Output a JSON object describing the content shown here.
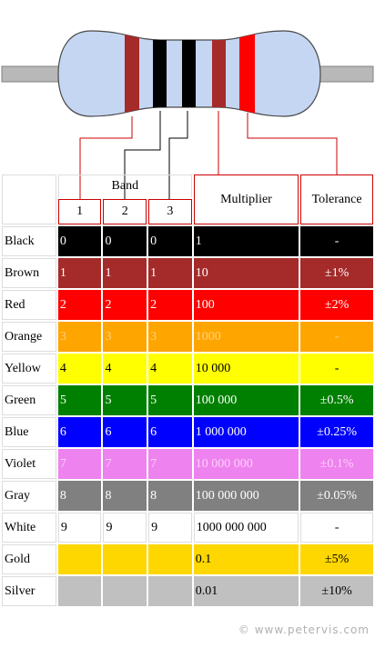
{
  "header": {
    "band_label": "Band",
    "band_numbers": [
      "1",
      "2",
      "3"
    ],
    "multiplier_label": "Multiplier",
    "tolerance_label": "Tolerance"
  },
  "rows": [
    {
      "name": "Black",
      "digit": "0",
      "multiplier": "1",
      "tolerance": "-",
      "bg": "#000000",
      "fg": "#ffffff",
      "digit_visible": true
    },
    {
      "name": "Brown",
      "digit": "1",
      "multiplier": "10",
      "tolerance": "±1%",
      "bg": "#a52a2a",
      "fg": "#ffffff",
      "digit_visible": true
    },
    {
      "name": "Red",
      "digit": "2",
      "multiplier": "100",
      "tolerance": "±2%",
      "bg": "#ff0000",
      "fg": "#ffffff",
      "digit_visible": true
    },
    {
      "name": "Orange",
      "digit": "3",
      "multiplier": "1000",
      "tolerance": "-",
      "bg": "#ffa500",
      "fg": "#ffd27f",
      "digit_visible": true
    },
    {
      "name": "Yellow",
      "digit": "4",
      "multiplier": "10 000",
      "tolerance": "-",
      "bg": "#ffff00",
      "fg": "#000000",
      "digit_visible": true
    },
    {
      "name": "Green",
      "digit": "5",
      "multiplier": "100 000",
      "tolerance": "±0.5%",
      "bg": "#008000",
      "fg": "#ffffff",
      "digit_visible": true
    },
    {
      "name": "Blue",
      "digit": "6",
      "multiplier": "1 000 000",
      "tolerance": "±0.25%",
      "bg": "#0000ff",
      "fg": "#ffffff",
      "digit_visible": true
    },
    {
      "name": "Violet",
      "digit": "7",
      "multiplier": "10 000 000",
      "tolerance": "±0.1%",
      "bg": "#ee82ee",
      "fg": "#ffd0ff",
      "digit_visible": true
    },
    {
      "name": "Gray",
      "digit": "8",
      "multiplier": "100 000 000",
      "tolerance": "±0.05%",
      "bg": "#808080",
      "fg": "#ffffff",
      "digit_visible": true
    },
    {
      "name": "White",
      "digit": "9",
      "multiplier": "1000 000 000",
      "tolerance": "-",
      "bg": "#ffffff",
      "fg": "#000000",
      "digit_visible": true
    },
    {
      "name": "Gold",
      "digit": "",
      "multiplier": "0.1",
      "tolerance": "±5%",
      "bg": "#ffd700",
      "fg": "#000000",
      "digit_visible": false
    },
    {
      "name": "Silver",
      "digit": "",
      "multiplier": "0.01",
      "tolerance": "±10%",
      "bg": "#c0c0c0",
      "fg": "#000000",
      "digit_visible": false
    }
  ],
  "resistor": {
    "body_color": "#c4d6f2",
    "lead_color": "#b8b8b8",
    "bands": [
      {
        "role": "band-1",
        "color": "#a52a2a"
      },
      {
        "role": "band-2",
        "color": "#000000"
      },
      {
        "role": "band-3",
        "color": "#000000"
      },
      {
        "role": "multiplier",
        "color": "#a52a2a"
      },
      {
        "role": "tolerance",
        "color": "#ff0000"
      }
    ]
  },
  "copyright": "© www.petervis.com"
}
